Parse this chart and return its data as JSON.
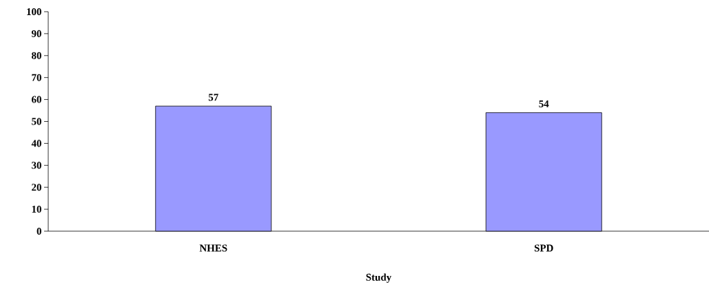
{
  "chart_data": {
    "type": "bar",
    "xlabel": "Study",
    "categories": [
      "NHES",
      "SPD"
    ],
    "values": [
      57,
      54
    ],
    "color": "#9999ff",
    "ylim": [
      0,
      100
    ],
    "yticks": [
      0,
      10,
      20,
      30,
      40,
      50,
      60,
      70,
      80,
      90,
      100
    ],
    "data_labels": true,
    "grid": false
  }
}
